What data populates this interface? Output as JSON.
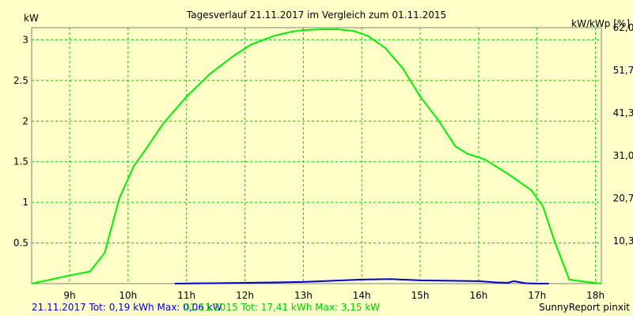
{
  "chart_data": {
    "type": "line",
    "title": "Tagesverlauf 21.11.2017 im Vergleich zum 01.11.2015",
    "ylabel_left": "kW",
    "ylabel_right": "kW/kWp [%]",
    "xlim": [
      8.35,
      18.1
    ],
    "ylim": [
      0,
      3.15
    ],
    "grid": true,
    "x_ticks": [
      9,
      10,
      11,
      12,
      13,
      14,
      15,
      16,
      17,
      18
    ],
    "x_tick_labels": [
      "9h",
      "10h",
      "11h",
      "12h",
      "13h",
      "14h",
      "15h",
      "16h",
      "17h",
      "18h"
    ],
    "y_ticks_left": [
      0.5,
      1,
      1.5,
      2,
      2.5,
      3
    ],
    "y_tick_labels_left": [
      "0.5",
      "1",
      "1.5",
      "2",
      "2.5",
      "3"
    ],
    "y_ticks_right": [
      0.525,
      1.05,
      1.575,
      2.1,
      2.625,
      3.15
    ],
    "y_tick_labels_right": [
      "10,3",
      "20,7",
      "31,0",
      "41,3",
      "51,7",
      "62,0"
    ],
    "series": [
      {
        "name": "01.11.2015",
        "color": "#00ee00",
        "x": [
          8.35,
          9.0,
          9.35,
          9.6,
          9.85,
          10.1,
          10.3,
          10.6,
          11.0,
          11.4,
          11.8,
          12.1,
          12.5,
          12.8,
          13.0,
          13.3,
          13.6,
          13.85,
          14.1,
          14.4,
          14.7,
          15.0,
          15.3,
          15.6,
          15.8,
          16.1,
          16.5,
          16.9,
          17.1,
          17.3,
          17.55,
          17.85,
          18.1
        ],
        "y": [
          0.0,
          0.1,
          0.15,
          0.38,
          1.05,
          1.45,
          1.65,
          1.97,
          2.3,
          2.58,
          2.8,
          2.94,
          3.05,
          3.1,
          3.12,
          3.13,
          3.13,
          3.11,
          3.05,
          2.9,
          2.65,
          2.3,
          2.02,
          1.69,
          1.6,
          1.53,
          1.35,
          1.15,
          0.95,
          0.52,
          0.05,
          0.02,
          0.0
        ]
      },
      {
        "name": "21.11.2017",
        "color": "#0000cc",
        "x": [
          10.8,
          11.5,
          12.0,
          12.5,
          13.0,
          13.5,
          14.0,
          14.5,
          15.0,
          15.5,
          16.0,
          16.3,
          16.5,
          16.6,
          16.8,
          17.0,
          17.2
        ],
        "y": [
          0.0,
          0.005,
          0.01,
          0.015,
          0.02,
          0.035,
          0.05,
          0.055,
          0.04,
          0.035,
          0.03,
          0.015,
          0.01,
          0.03,
          0.005,
          0.0,
          0.0
        ]
      }
    ]
  },
  "footer": {
    "left_blue": "21.11.2017 Tot: 0,19 kWh Max: 0,06 kW",
    "left_green": "01.11.2015 Tot: 17,41 kWh Max: 3,15 kW",
    "right": "SunnyReport pinxit"
  },
  "colors": {
    "background": "#ffffc8",
    "grid": "#00cc00",
    "axis": "#000000"
  }
}
